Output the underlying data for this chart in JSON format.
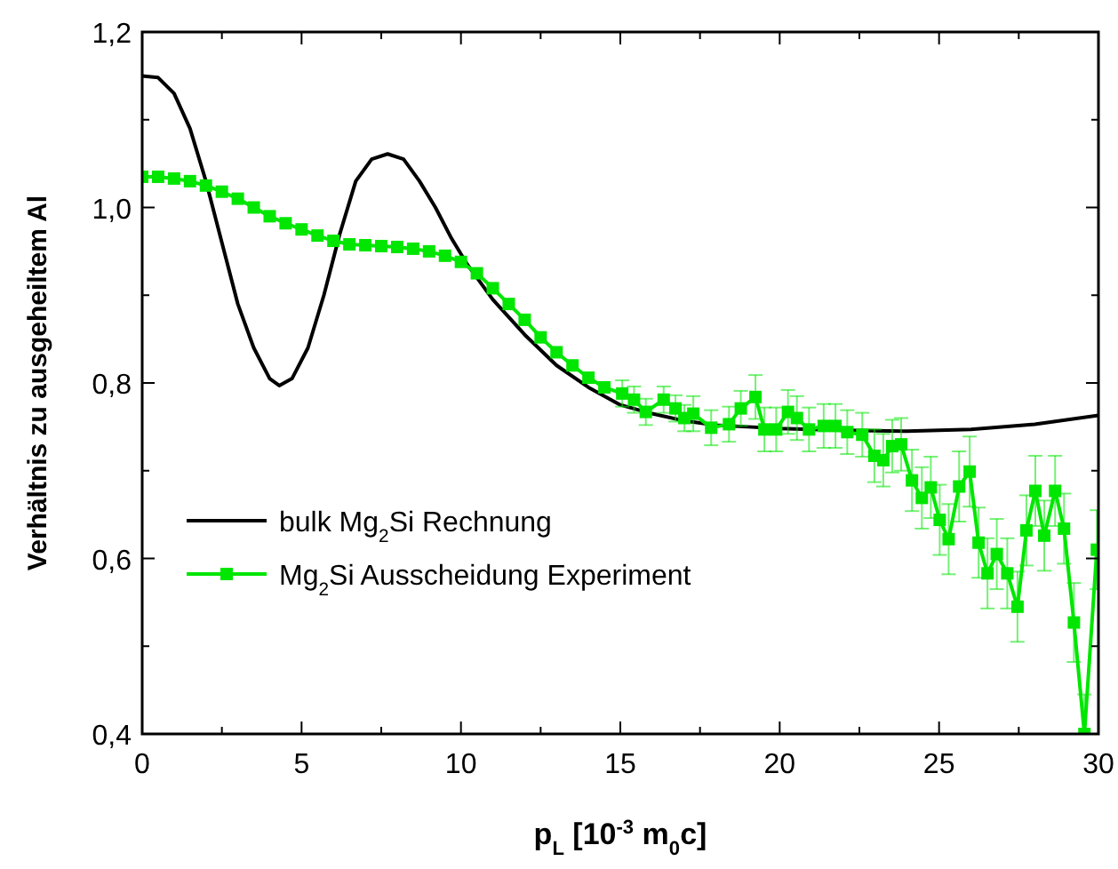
{
  "chart_data": {
    "type": "line",
    "xlabel": "p$_{L}$ [10$^{-3}$ m$_{0}$c]",
    "ylabel": "Verhältnis zu ausgeheiltem Al",
    "xlim": [
      0,
      30
    ],
    "ylim": [
      0.4,
      1.2
    ],
    "xticks": [
      0,
      {
        "value": 2.5,
        "label": null
      },
      5,
      {
        "value": 7.5,
        "label": null
      },
      10,
      {
        "value": 12.5,
        "label": null
      },
      15,
      {
        "value": 17.5,
        "label": null
      },
      20,
      {
        "value": 22.5,
        "label": null
      },
      25,
      {
        "value": 27.5,
        "label": null
      },
      30
    ],
    "yticks": [
      {
        "value": 0.4,
        "label": "0,4"
      },
      {
        "value": 0.5,
        "label": null
      },
      {
        "value": 0.6,
        "label": "0,6"
      },
      {
        "value": 0.7,
        "label": null
      },
      {
        "value": 0.8,
        "label": "0,8"
      },
      {
        "value": 0.9,
        "label": null
      },
      {
        "value": 1.0,
        "label": "1,0"
      },
      {
        "value": 1.1,
        "label": null
      },
      {
        "value": 1.2,
        "label": "1,2"
      }
    ],
    "grid": false,
    "legend": "bottom left",
    "series": [
      {
        "name": "bulk Mg$_{2}$Si Rechnung",
        "color": "#000000",
        "marker": "none",
        "line_style": "solid",
        "x": [
          0,
          0.5,
          1,
          1.5,
          2,
          2.5,
          3,
          3.5,
          4,
          4.3,
          4.7,
          5.2,
          5.7,
          6.2,
          6.7,
          7.2,
          7.7,
          8.2,
          8.7,
          9.2,
          9.7,
          10.2,
          11,
          12,
          13,
          14,
          15,
          16,
          17,
          18,
          19,
          20,
          22,
          24,
          26,
          28,
          30
        ],
        "values": [
          1.15,
          1.148,
          1.13,
          1.09,
          1.03,
          0.96,
          0.89,
          0.84,
          0.805,
          0.797,
          0.805,
          0.84,
          0.9,
          0.97,
          1.03,
          1.055,
          1.061,
          1.055,
          1.03,
          1.0,
          0.965,
          0.935,
          0.895,
          0.855,
          0.82,
          0.795,
          0.775,
          0.765,
          0.757,
          0.752,
          0.75,
          0.748,
          0.746,
          0.745,
          0.747,
          0.753,
          0.763
        ]
      },
      {
        "name": "Mg$_{2}$Si Ausscheidung Experiment",
        "color": "#00e600",
        "marker": "square",
        "line_style": "solid",
        "x": [
          0,
          0.5,
          1,
          1.5,
          2,
          2.5,
          3,
          3.5,
          4,
          4.5,
          5,
          5.5,
          6,
          6.5,
          7,
          7.5,
          8,
          8.5,
          9,
          9.5,
          10,
          10.5,
          11,
          11.5,
          12,
          12.5,
          13,
          13.5,
          14,
          14.5,
          15.06,
          15.43,
          15.8,
          16.36,
          16.73,
          17.01,
          17.29,
          17.85,
          18.41,
          18.78,
          19.24,
          19.52,
          19.89,
          20.26,
          20.54,
          20.92,
          21.38,
          21.75,
          22.12,
          22.59,
          22.97,
          23.25,
          23.53,
          23.81,
          24.15,
          24.46,
          24.74,
          25.02,
          25.3,
          25.63,
          25.96,
          26.24,
          26.52,
          26.81,
          27.14,
          27.46,
          27.74,
          28.02,
          28.3,
          28.64,
          28.92,
          29.23,
          29.56,
          29.95
        ],
        "values": [
          1.035,
          1.035,
          1.033,
          1.03,
          1.025,
          1.018,
          1.01,
          1.0,
          0.99,
          0.982,
          0.975,
          0.968,
          0.962,
          0.958,
          0.957,
          0.956,
          0.955,
          0.953,
          0.95,
          0.945,
          0.938,
          0.925,
          0.908,
          0.89,
          0.872,
          0.852,
          0.835,
          0.82,
          0.806,
          0.795,
          0.788,
          0.781,
          0.767,
          0.781,
          0.771,
          0.76,
          0.765,
          0.749,
          0.753,
          0.771,
          0.784,
          0.747,
          0.747,
          0.767,
          0.76,
          0.747,
          0.751,
          0.751,
          0.744,
          0.741,
          0.717,
          0.712,
          0.728,
          0.73,
          0.689,
          0.669,
          0.681,
          0.644,
          0.622,
          0.682,
          0.699,
          0.618,
          0.583,
          0.605,
          0.583,
          0.545,
          0.632,
          0.677,
          0.626,
          0.677,
          0.634,
          0.527,
          0.4,
          0.61
        ],
        "errors": [
          null,
          null,
          null,
          null,
          null,
          null,
          null,
          null,
          null,
          null,
          null,
          null,
          null,
          null,
          null,
          null,
          null,
          null,
          null,
          null,
          null,
          null,
          null,
          null,
          null,
          null,
          null,
          null,
          null,
          null,
          0.015,
          0.015,
          0.015,
          0.015,
          0.015,
          0.015,
          0.02,
          0.02,
          0.02,
          0.02,
          0.025,
          0.025,
          0.025,
          0.025,
          0.025,
          0.025,
          0.025,
          0.025,
          0.025,
          0.025,
          0.03,
          0.03,
          0.03,
          0.03,
          0.035,
          0.035,
          0.035,
          0.04,
          0.04,
          0.04,
          0.04,
          0.04,
          0.04,
          0.04,
          0.04,
          0.04,
          0.04,
          0.04,
          0.04,
          0.04,
          0.04,
          0.045,
          0.045,
          0.045
        ]
      }
    ]
  }
}
